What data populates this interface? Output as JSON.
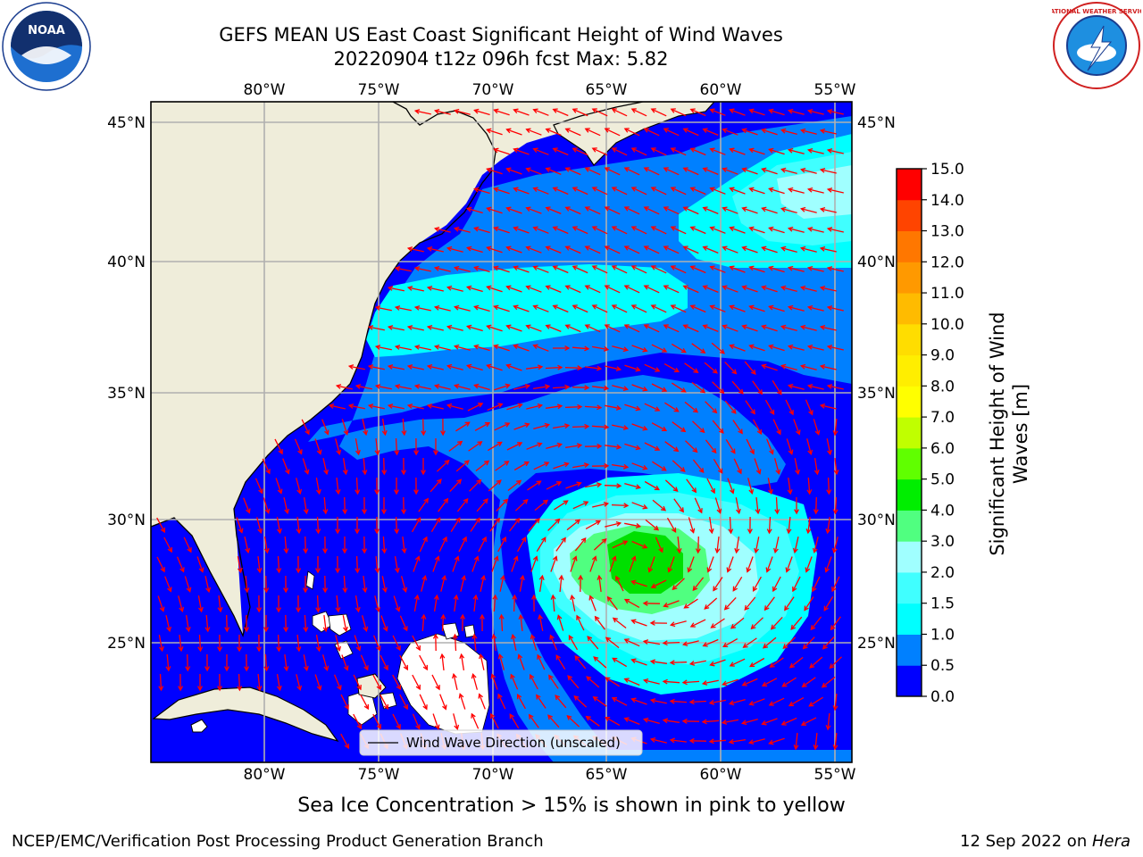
{
  "title": {
    "line1": "GEFS MEAN US East Coast Significant Height of Wind Waves",
    "line2": "20220904 t12z 096h fcst   Max: 5.82"
  },
  "map": {
    "lon_ticks": [
      "80°W",
      "75°W",
      "70°W",
      "65°W",
      "60°W",
      "55°W"
    ],
    "lat_ticks": [
      "45°N",
      "40°N",
      "35°N",
      "30°N",
      "25°N"
    ],
    "legend_label": "Wind Wave Direction (unscaled)",
    "colors": {
      "land": "#efedda",
      "band_0_0.5": "#0000ff",
      "band_0.5_1": "#0080ff",
      "band_1_1.5": "#00ffff",
      "band_1.5_2": "#40ffff",
      "band_2_3": "#a0ffff",
      "band_3_4": "#40ff70",
      "band_4_5": "#00e000",
      "arrow": "#ff0000",
      "grid": "#b0b0b0"
    }
  },
  "colorbar": {
    "label": "Significant Height of Wind Waves [m]",
    "ticks": [
      "0.0",
      "0.5",
      "1.0",
      "1.5",
      "2.0",
      "3.0",
      "4.0",
      "5.0",
      "6.0",
      "7.0",
      "8.0",
      "9.0",
      "10.0",
      "11.0",
      "12.0",
      "13.0",
      "14.0",
      "15.0"
    ],
    "colors": [
      "#0000ff",
      "#0080ff",
      "#00ffff",
      "#40ffff",
      "#a0ffff",
      "#50ff80",
      "#00ee00",
      "#60ff00",
      "#c0ff00",
      "#ffff00",
      "#ffee00",
      "#ffdd00",
      "#ffbb00",
      "#ff9900",
      "#ff7700",
      "#ff4400",
      "#ff0000"
    ]
  },
  "ice_note": "Sea Ice Concentration > 15% is shown in pink to yellow",
  "footer": {
    "left": "NCEP/EMC/Verification Post Processing Product Generation Branch",
    "right_date": "12 Sep 2022 on ",
    "right_host": "Hera"
  },
  "logos": {
    "noaa_text": "NOAA",
    "nws_text": "NATIONAL WEATHER SERVICE"
  }
}
